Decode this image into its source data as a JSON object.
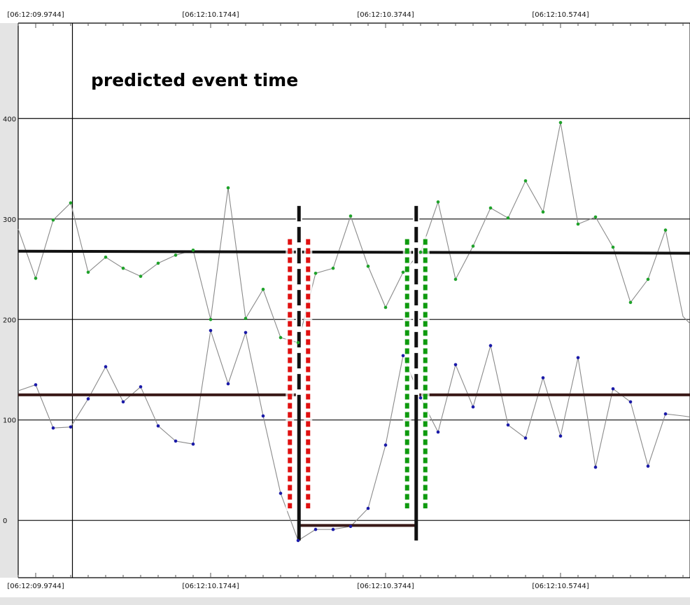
{
  "chart_data": {
    "type": "line",
    "annotation": "predicted event time",
    "x_unit": "sample",
    "x_ticks": [
      {
        "x": 0,
        "label": "[06:12:09.9744]"
      },
      {
        "x": 10,
        "label": "[06:12:10.1744]"
      },
      {
        "x": 20,
        "label": "[06:12:10.3744]"
      },
      {
        "x": 30,
        "label": "[06:12:10.5744]"
      }
    ],
    "xlim": [
      -1,
      37.4
    ],
    "ylim": [
      -57,
      495
    ],
    "y_ticks": [
      0,
      100,
      200,
      300,
      400
    ],
    "grid": "horizontal",
    "predicted_event_x": 2.1,
    "series": [
      {
        "color": "#1fa22a",
        "line_color": "#8a8a8a",
        "x": [
          -1,
          0,
          1,
          2,
          3,
          4,
          5,
          6,
          7,
          8,
          9,
          10,
          11,
          12,
          13,
          14,
          15,
          16,
          17,
          18,
          19,
          20,
          21,
          22,
          23,
          24,
          25,
          26,
          27,
          28,
          29,
          30,
          31,
          32,
          33,
          34,
          35,
          36,
          37,
          37.4
        ],
        "y": [
          290,
          241,
          299,
          316,
          247,
          262,
          251,
          243,
          256,
          264,
          269,
          200,
          331,
          201,
          230,
          182,
          177,
          246,
          251,
          303,
          253,
          212,
          247,
          267,
          317,
          240,
          273,
          311,
          301,
          338,
          307,
          396,
          295,
          302,
          272,
          217,
          240,
          289,
          203,
          196
        ]
      },
      {
        "color": "#1a1aa8",
        "line_color": "#8a8a8a",
        "x": [
          -1,
          0,
          1,
          2,
          3,
          4,
          5,
          6,
          7,
          8,
          9,
          10,
          11,
          12,
          13,
          14,
          15,
          16,
          17,
          18,
          19,
          20,
          21,
          22,
          23,
          24,
          25,
          26,
          27,
          28,
          29,
          30,
          31,
          32,
          33,
          34,
          35,
          36,
          37,
          37.4
        ],
        "y": [
          129,
          135,
          92,
          93,
          121,
          153,
          118,
          133,
          94,
          79,
          76,
          189,
          136,
          187,
          104,
          27,
          -20,
          -9,
          -9,
          -6,
          12,
          75,
          164,
          122,
          88,
          155,
          113,
          174,
          95,
          82,
          142,
          84,
          162,
          53,
          131,
          118,
          54,
          106,
          104,
          103
        ]
      }
    ],
    "thresholds": [
      {
        "color": "#111111",
        "from": -1,
        "to": 37.4,
        "y_from": 268,
        "y_to": 266
      },
      {
        "color": "#3a1a18",
        "segments": [
          {
            "from": -1,
            "to": 15.05,
            "y": 125
          },
          {
            "from": 15.05,
            "to": 21.75,
            "y": -5
          },
          {
            "from": 21.75,
            "to": 37.4,
            "y": 125
          }
        ]
      }
    ],
    "markers": [
      {
        "role": "start",
        "color": "#e01010",
        "at": 15.05,
        "low": 12,
        "high": 280
      },
      {
        "role": "end",
        "color": "#0e9a0e",
        "at": 21.75,
        "low": 12,
        "high": 280
      }
    ],
    "event_bounds": [
      {
        "at": 15.05,
        "low": -20,
        "high": 313
      },
      {
        "at": 21.75,
        "low": -20,
        "high": 313
      }
    ]
  }
}
